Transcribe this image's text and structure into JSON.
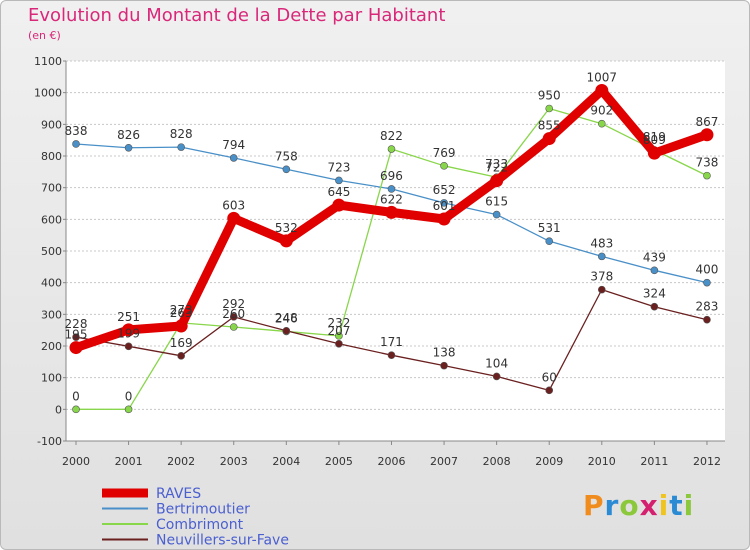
{
  "chart_data": {
    "type": "line",
    "title": "Evolution du Montant de la Dette par Habitant",
    "subtitle": "(en €)",
    "xlabel": "",
    "ylabel": "",
    "categories": [
      "2000",
      "2001",
      "2002",
      "2003",
      "2004",
      "2005",
      "2006",
      "2007",
      "2008",
      "2009",
      "2010",
      "2011",
      "2012"
    ],
    "ylim": [
      -100,
      1100
    ],
    "yticks": [
      -100,
      0,
      100,
      200,
      300,
      400,
      500,
      600,
      700,
      800,
      900,
      1000,
      1100
    ],
    "grid": "horizontal",
    "legend_position": "bottom-left",
    "series": [
      {
        "name": "RAVES",
        "color": "#e00000",
        "values": [
          195,
          251,
          263,
          603,
          532,
          645,
          622,
          601,
          722,
          855,
          1007,
          809,
          867
        ]
      },
      {
        "name": "Bertrimoutier",
        "color": "#4a90c8",
        "values": [
          838,
          826,
          828,
          794,
          758,
          723,
          696,
          652,
          615,
          531,
          483,
          439,
          400
        ]
      },
      {
        "name": "Combrimont",
        "color": "#88d64a",
        "values": [
          0,
          0,
          273,
          260,
          246,
          232,
          822,
          769,
          733,
          950,
          902,
          819,
          738
        ]
      },
      {
        "name": "Neuvillers-sur-Fave",
        "color": "#6b2020",
        "values": [
          228,
          199,
          169,
          292,
          248,
          207,
          171,
          138,
          104,
          60,
          378,
          324,
          283
        ]
      }
    ]
  },
  "logo": {
    "text": "Proxiti"
  }
}
